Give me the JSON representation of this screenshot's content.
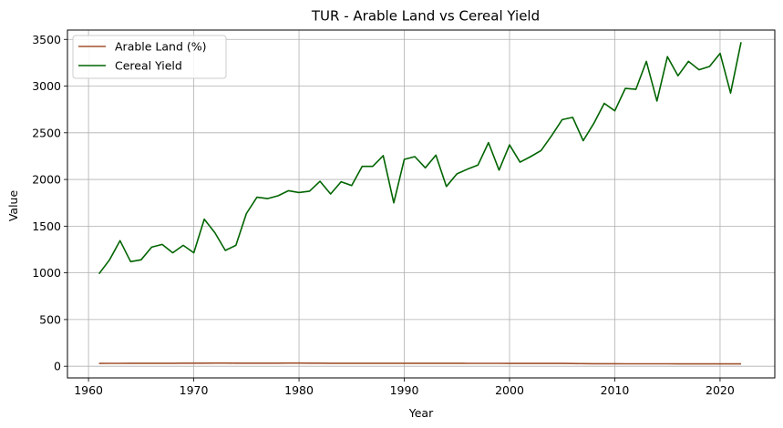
{
  "chart_data": {
    "type": "line",
    "title": "TUR - Arable Land vs Cereal Yield",
    "xlabel": "Year",
    "ylabel": "Value",
    "xlim": [
      1958,
      2025.2
    ],
    "ylim": [
      -125,
      3600
    ],
    "xticks": [
      1960,
      1970,
      1980,
      1990,
      2000,
      2010,
      2020
    ],
    "yticks": [
      0,
      500,
      1000,
      1500,
      2000,
      2500,
      3000,
      3500
    ],
    "grid": true,
    "legend_position": "top-left",
    "x": [
      1961,
      1962,
      1963,
      1964,
      1965,
      1966,
      1967,
      1968,
      1969,
      1970,
      1971,
      1972,
      1973,
      1974,
      1975,
      1976,
      1977,
      1978,
      1979,
      1980,
      1981,
      1982,
      1983,
      1984,
      1985,
      1986,
      1987,
      1988,
      1989,
      1990,
      1991,
      1992,
      1993,
      1994,
      1995,
      1996,
      1997,
      1998,
      1999,
      2000,
      2001,
      2002,
      2003,
      2004,
      2005,
      2006,
      2007,
      2008,
      2009,
      2010,
      2011,
      2012,
      2013,
      2014,
      2015,
      2016,
      2017,
      2018,
      2019,
      2020,
      2021,
      2022
    ],
    "series": [
      {
        "name": "Arable Land (%)",
        "color": "#a0522d",
        "values": [
          30,
          31,
          31,
          32,
          32,
          32,
          32,
          32,
          33,
          33,
          33,
          34,
          34,
          33,
          33,
          33,
          33,
          33,
          34,
          34,
          33,
          33,
          32,
          32,
          32,
          32,
          32,
          32,
          32,
          32,
          32,
          32,
          32,
          32,
          32,
          31,
          31,
          31,
          31,
          30,
          30,
          30,
          30,
          30,
          30,
          29,
          28,
          27,
          27,
          27,
          26,
          26,
          26,
          26,
          26,
          25,
          25,
          25,
          25,
          25,
          25,
          25
        ]
      },
      {
        "name": "Cereal Yield",
        "color": "#006400",
        "values": [
          990,
          1140,
          1345,
          1120,
          1140,
          1275,
          1305,
          1215,
          1295,
          1215,
          1575,
          1430,
          1240,
          1295,
          1635,
          1810,
          1795,
          1825,
          1880,
          1860,
          1875,
          1980,
          1845,
          1975,
          1935,
          2140,
          2140,
          2255,
          1750,
          2215,
          2245,
          2125,
          2260,
          1925,
          2060,
          2110,
          2155,
          2395,
          2100,
          2370,
          2185,
          2245,
          2310,
          2470,
          2640,
          2665,
          2415,
          2600,
          2815,
          2735,
          2975,
          2965,
          3265,
          2840,
          3315,
          3110,
          3265,
          3175,
          3210,
          3350,
          2925,
          3470
        ]
      }
    ]
  }
}
